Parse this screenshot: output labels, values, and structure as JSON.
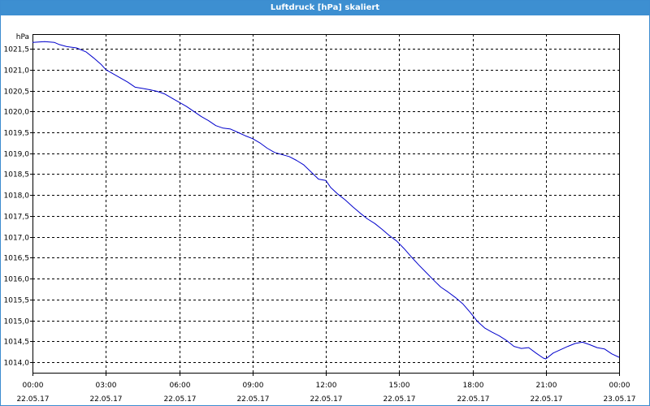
{
  "window": {
    "title": "Luftdruck [hPa] skaliert"
  },
  "chart_data": {
    "type": "line",
    "title": "Luftdruck [hPa] skaliert",
    "ylabel": "hPa",
    "xlabel": "",
    "ylim": [
      1013.75,
      1021.85
    ],
    "xlim": [
      0,
      24
    ],
    "grid": true,
    "colors": {
      "line": "#0000cc",
      "grid": "#000000",
      "title_bar": "#3d8fd1"
    },
    "y_ticks": [
      {
        "value": 1014.0,
        "label": "1014,0"
      },
      {
        "value": 1014.5,
        "label": "1014,5"
      },
      {
        "value": 1015.0,
        "label": "1015,0"
      },
      {
        "value": 1015.5,
        "label": "1015,5"
      },
      {
        "value": 1016.0,
        "label": "1016,0"
      },
      {
        "value": 1016.5,
        "label": "1016,5"
      },
      {
        "value": 1017.0,
        "label": "1017,0"
      },
      {
        "value": 1017.5,
        "label": "1017,5"
      },
      {
        "value": 1018.0,
        "label": "1018,0"
      },
      {
        "value": 1018.5,
        "label": "1018,5"
      },
      {
        "value": 1019.0,
        "label": "1019,0"
      },
      {
        "value": 1019.5,
        "label": "1019,5"
      },
      {
        "value": 1020.0,
        "label": "1020,0"
      },
      {
        "value": 1020.5,
        "label": "1020,5"
      },
      {
        "value": 1021.0,
        "label": "1021,0"
      },
      {
        "value": 1021.5,
        "label": "1021,5"
      }
    ],
    "x_ticks": [
      {
        "value": 0,
        "time": "00:00",
        "date": "22.05.17"
      },
      {
        "value": 3,
        "time": "03:00",
        "date": "22.05.17"
      },
      {
        "value": 6,
        "time": "06:00",
        "date": "22.05.17"
      },
      {
        "value": 9,
        "time": "09:00",
        "date": "22.05.17"
      },
      {
        "value": 12,
        "time": "12:00",
        "date": "22.05.17"
      },
      {
        "value": 15,
        "time": "15:00",
        "date": "22.05.17"
      },
      {
        "value": 18,
        "time": "18:00",
        "date": "22.05.17"
      },
      {
        "value": 21,
        "time": "21:00",
        "date": "22.05.17"
      },
      {
        "value": 24,
        "time": "00:00",
        "date": "23.05.17"
      }
    ],
    "series": [
      {
        "x": [
          0,
          0.5,
          0.9,
          1.1,
          1.4,
          1.8,
          2.2,
          2.5,
          2.8,
          3.0,
          3.3,
          3.6,
          3.9,
          4.2,
          4.5,
          4.8,
          5.1,
          5.4,
          5.7,
          6.0,
          6.3,
          6.6,
          6.9,
          7.2,
          7.5,
          7.8,
          8.1,
          8.4,
          8.7,
          9.0,
          9.3,
          9.6,
          9.9,
          10.2,
          10.5,
          10.8,
          11.1,
          11.4,
          11.7,
          12.0,
          12.2,
          12.5,
          12.8,
          13.1,
          13.4,
          13.7,
          14.0,
          14.3,
          14.6,
          14.9,
          15.2,
          15.5,
          15.8,
          16.1,
          16.4,
          16.7,
          17.0,
          17.3,
          17.6,
          17.9,
          18.2,
          18.5,
          18.8,
          19.1,
          19.4,
          19.7,
          20.0,
          20.3,
          20.6,
          20.9,
          21.0,
          21.3,
          21.6,
          21.9,
          22.2,
          22.5,
          22.8,
          23.1,
          23.4,
          23.7,
          24.0
        ],
        "y": [
          1021.65,
          1021.67,
          1021.65,
          1021.6,
          1021.55,
          1021.52,
          1021.42,
          1021.28,
          1021.13,
          1021.0,
          1020.9,
          1020.8,
          1020.7,
          1020.58,
          1020.55,
          1020.52,
          1020.48,
          1020.42,
          1020.32,
          1020.22,
          1020.12,
          1020.0,
          1019.88,
          1019.78,
          1019.66,
          1019.6,
          1019.58,
          1019.5,
          1019.42,
          1019.35,
          1019.25,
          1019.12,
          1019.02,
          1018.97,
          1018.92,
          1018.83,
          1018.72,
          1018.55,
          1018.38,
          1018.35,
          1018.18,
          1018.02,
          1017.88,
          1017.72,
          1017.57,
          1017.43,
          1017.32,
          1017.18,
          1017.03,
          1016.9,
          1016.72,
          1016.52,
          1016.33,
          1016.15,
          1015.97,
          1015.8,
          1015.68,
          1015.55,
          1015.4,
          1015.2,
          1014.98,
          1014.82,
          1014.72,
          1014.63,
          1014.52,
          1014.38,
          1014.33,
          1014.35,
          1014.22,
          1014.1,
          1014.08,
          1014.22,
          1014.3,
          1014.38,
          1014.45,
          1014.48,
          1014.42,
          1014.35,
          1014.32,
          1014.2,
          1014.12
        ]
      }
    ]
  }
}
